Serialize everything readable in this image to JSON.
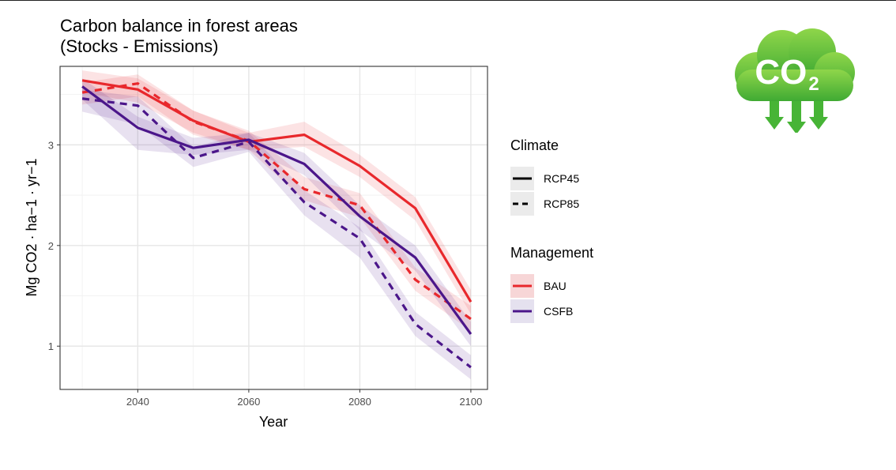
{
  "chart_title": {
    "line1": "Carbon balance in forest areas",
    "line2": "(Stocks - Emissions)"
  },
  "colors": {
    "BAU": "#e8282c",
    "CSFB": "#4b168a",
    "BAU_band": "#f7c9cb",
    "CSFB_band": "#ddd6ea"
  },
  "logo": {
    "text": "CO2",
    "main": "CO",
    "subscript": "2",
    "icon": "co2-cloud-icon",
    "color": "#52bf3a"
  },
  "legend": {
    "climate": {
      "title": "Climate",
      "items": [
        {
          "label": "RCP45",
          "style": "solid"
        },
        {
          "label": "RCP85",
          "style": "dashed"
        }
      ]
    },
    "management": {
      "title": "Management",
      "items": [
        {
          "label": "BAU",
          "color": "#e8282c"
        },
        {
          "label": "CSFB",
          "color": "#4b168a"
        }
      ]
    }
  },
  "chart_data": {
    "type": "line",
    "title": "Carbon balance in forest areas (Stocks - Emissions)",
    "xlabel": "Year",
    "ylabel": "Mg CO2 · ha−1 · yr−1",
    "x": [
      2030,
      2040,
      2050,
      2060,
      2070,
      2080,
      2090,
      2100
    ],
    "xlim": [
      2026,
      2103
    ],
    "ylim": [
      0.57,
      3.78
    ],
    "xticks": [
      2040,
      2060,
      2080,
      2100
    ],
    "xtick_labels": [
      "2040",
      "2060",
      "2080",
      "2100"
    ],
    "yticks": [
      1,
      2,
      3
    ],
    "ytick_labels": [
      "1",
      "2",
      "3"
    ],
    "grid": true,
    "legend_position": "right",
    "series": [
      {
        "name": "BAU RCP45",
        "management": "BAU",
        "climate": "RCP45",
        "values": [
          3.64,
          3.55,
          3.24,
          3.03,
          3.1,
          2.79,
          2.37,
          1.44
        ],
        "band_low": [
          3.52,
          3.42,
          3.12,
          2.95,
          2.98,
          2.68,
          2.25,
          1.32
        ],
        "band_high": [
          3.74,
          3.66,
          3.34,
          3.12,
          3.23,
          2.9,
          2.48,
          1.56
        ]
      },
      {
        "name": "BAU RCP85",
        "management": "BAU",
        "climate": "RCP85",
        "values": [
          3.52,
          3.61,
          3.23,
          3.04,
          2.56,
          2.4,
          1.66,
          1.27
        ],
        "band_low": [
          3.4,
          3.48,
          3.1,
          2.95,
          2.45,
          2.28,
          1.55,
          1.15
        ],
        "band_high": [
          3.62,
          3.7,
          3.34,
          3.14,
          2.68,
          2.52,
          1.78,
          1.4
        ]
      },
      {
        "name": "CSFB RCP45",
        "management": "CSFB",
        "climate": "RCP45",
        "values": [
          3.58,
          3.17,
          2.97,
          3.05,
          2.81,
          2.29,
          1.88,
          1.12
        ],
        "band_low": [
          3.45,
          2.95,
          2.9,
          2.95,
          2.7,
          2.15,
          1.75,
          1.0
        ],
        "band_high": [
          3.66,
          3.28,
          3.07,
          3.12,
          2.92,
          2.4,
          2.0,
          1.24
        ]
      },
      {
        "name": "CSFB RCP85",
        "management": "CSFB",
        "climate": "RCP85",
        "values": [
          3.46,
          3.39,
          2.87,
          3.03,
          2.43,
          2.07,
          1.22,
          0.79
        ],
        "band_low": [
          3.33,
          3.2,
          2.78,
          2.93,
          2.3,
          1.88,
          1.1,
          0.67
        ],
        "band_high": [
          3.55,
          3.48,
          2.98,
          3.12,
          2.55,
          2.18,
          1.34,
          0.91
        ]
      }
    ]
  }
}
